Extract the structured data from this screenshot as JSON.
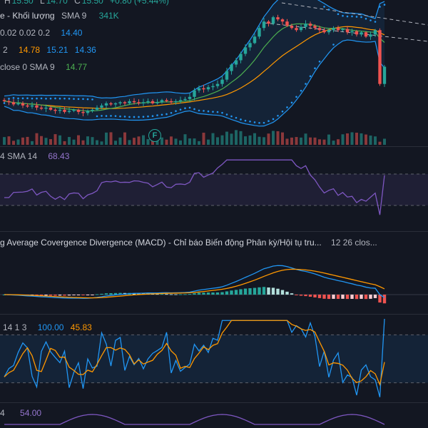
{
  "colors": {
    "bg": "#131722",
    "up": "#26a69a",
    "down": "#ef5350",
    "blue": "#2962ff",
    "lightblue": "#2196f3",
    "orange": "#ff9800",
    "green": "#4caf50",
    "purple": "#7e57c2",
    "grid": "#2a2e39",
    "dashed": "#9598a1"
  },
  "legend": {
    "ohlc": {
      "h": "H",
      "h_val": "15.50",
      "l": "L",
      "l_val": "14.70",
      "c": "C",
      "c_val": "15.50",
      "change": "+0.80 (+5.44%)"
    },
    "volume": {
      "label": "e - Khối lượng",
      "sma": "SMA 9",
      "value": "341K"
    },
    "params_a": {
      "label": "0.02 0.02 0.2",
      "value": "14.40"
    },
    "bb": {
      "prefix": "2",
      "v1": "14.78",
      "v2": "15.21",
      "v3": "14.36"
    },
    "ma": {
      "label": "close 0 SMA 9",
      "value": "14.77"
    },
    "rsi": {
      "label": "4 SMA 14",
      "value": "68.43"
    },
    "macd": {
      "label": "g Average Covergence Divergence (MACD) - Chỉ báo Biến động Phân kỳ/Hội tụ tru...",
      "params": "12 26 clos..."
    },
    "stoch": {
      "label": "14 1 3",
      "k": "100.00",
      "d": "45.83"
    },
    "bottom": {
      "label": "4",
      "value": "54.00"
    }
  },
  "badge": {
    "icon": "earnings-flag-icon",
    "text": "F"
  },
  "chart_data": {
    "type": "candlestick",
    "title": "",
    "closes": [
      13.9,
      13.85,
      13.75,
      13.8,
      13.7,
      13.65,
      13.7,
      13.6,
      13.55,
      13.6,
      13.5,
      13.45,
      13.5,
      13.4,
      13.45,
      13.5,
      13.4,
      13.35,
      13.45,
      13.5,
      13.6,
      13.7,
      13.8,
      13.75,
      13.8,
      13.85,
      13.8,
      13.9,
      13.85,
      13.8,
      13.85,
      13.9,
      13.8,
      13.85,
      13.95,
      13.9,
      13.85,
      13.9,
      13.95,
      14.0,
      14.1,
      14.4,
      14.5,
      14.45,
      14.55,
      14.6,
      14.7,
      14.9,
      15.3,
      15.6,
      15.8,
      16.1,
      16.4,
      16.6,
      16.9,
      17.3,
      17.6,
      17.5,
      17.8,
      17.7,
      17.6,
      17.4,
      17.3,
      17.2,
      17.35,
      17.5,
      17.4,
      17.3,
      17.2,
      17.1,
      17.2,
      17.3,
      17.2,
      17.25,
      17.1,
      17.15,
      17.0,
      17.1,
      16.9,
      17.0,
      17.2,
      14.7,
      15.5
    ],
    "volume_bars": 83,
    "indicators": [
      "Volume SMA 9",
      "Parabolic SAR",
      "Bollinger Bands",
      "SMA 9",
      "RSI",
      "MACD",
      "Stochastic"
    ],
    "panes": [
      {
        "name": "price",
        "ylim": [
          12.8,
          18.6
        ]
      },
      {
        "name": "rsi",
        "ylim": [
          0,
          100
        ],
        "bands": [
          30,
          70
        ]
      },
      {
        "name": "macd"
      },
      {
        "name": "stoch",
        "ylim": [
          0,
          100
        ],
        "bands": [
          20,
          80
        ]
      }
    ]
  }
}
